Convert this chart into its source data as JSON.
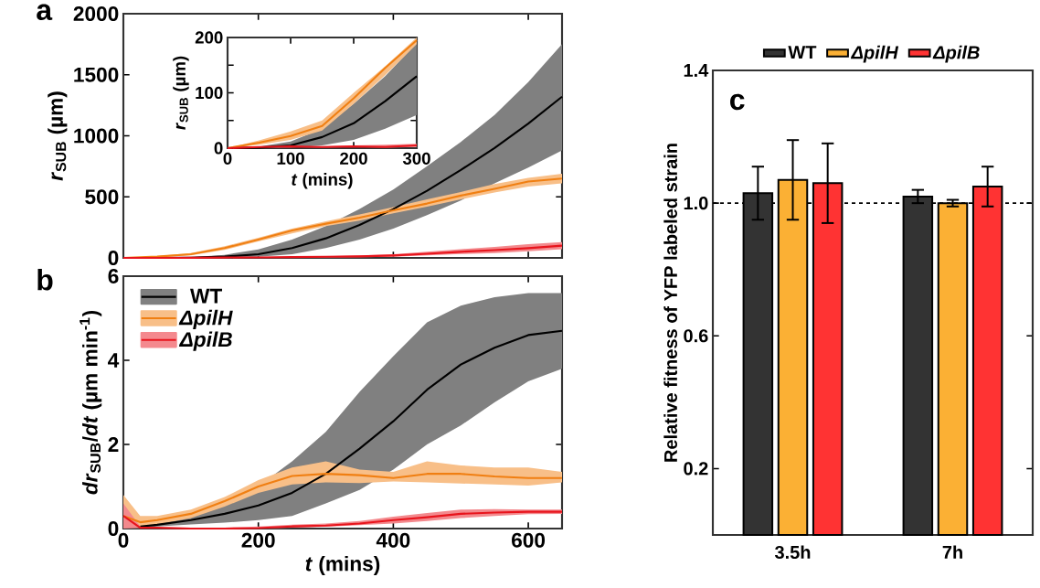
{
  "chart_data": [
    {
      "type": "line",
      "ylabel": "*r*$_{SUB}$ (µm)",
      "annotations": [
        "a"
      ],
      "xlim": [
        0,
        650
      ],
      "ylim": [
        0,
        2000
      ],
      "xticks": [
        0,
        200,
        400,
        600
      ],
      "yticks": [
        0,
        500,
        1000,
        1500,
        2000
      ],
      "tick_labels": "y",
      "x": [
        0,
        50,
        100,
        150,
        200,
        250,
        300,
        350,
        400,
        450,
        500,
        550,
        600,
        650
      ],
      "series": [
        {
          "color": "#000000",
          "values": [
            0,
            0,
            2,
            10,
            30,
            80,
            160,
            270,
            400,
            550,
            720,
            900,
            1100,
            1320
          ],
          "lower": [
            0,
            0,
            0.5,
            2,
            10,
            30,
            80,
            150,
            240,
            350,
            470,
            610,
            740,
            880
          ],
          "upper": [
            0,
            1,
            5,
            25,
            70,
            150,
            260,
            400,
            560,
            750,
            950,
            1170,
            1440,
            1750
          ]
        },
        {
          "color": "#f07f12",
          "values": [
            0,
            10,
            30,
            80,
            150,
            225,
            280,
            330,
            390,
            445,
            510,
            565,
            625,
            650
          ],
          "lower": [
            0,
            5,
            20,
            65,
            135,
            200,
            260,
            305,
            365,
            420,
            480,
            535,
            585,
            610
          ],
          "upper": [
            0,
            15,
            40,
            95,
            165,
            240,
            300,
            355,
            415,
            480,
            540,
            605,
            655,
            690
          ]
        },
        {
          "color": "#e8141c",
          "values": [
            0,
            0,
            1,
            3,
            4,
            7,
            9,
            12,
            20,
            34,
            50,
            64,
            80,
            100
          ],
          "lower": [
            0,
            0,
            1,
            0,
            1,
            3,
            4,
            6,
            10,
            20,
            31,
            40,
            55,
            72
          ],
          "upper": [
            0,
            1,
            3,
            4,
            6,
            9,
            13,
            20,
            30,
            50,
            72,
            90,
            112,
            130
          ]
        }
      ]
    },
    {
      "type": "line",
      "xlabel": "*t* (mins)",
      "ylabel": "*r*$_{SUB}$ (µm)",
      "xlim": [
        0,
        300
      ],
      "ylim": [
        0,
        200
      ],
      "xticks": [
        0,
        100,
        200,
        300
      ],
      "yticks": [
        0,
        {
          "value": 50,
          "label": null
        },
        100,
        {
          "value": 150,
          "label": null
        },
        200
      ],
      "x": [
        0,
        50,
        100,
        150,
        200,
        250,
        300
      ],
      "series": [
        {
          "color": "#000000",
          "values": [
            0,
            1,
            5,
            20,
            45,
            85,
            130
          ],
          "lower": [
            0,
            0,
            1,
            5,
            15,
            35,
            60
          ],
          "upper": [
            0,
            3,
            12,
            35,
            80,
            130,
            190
          ]
        },
        {
          "color": "#f07f12",
          "values": [
            0,
            10,
            22,
            40,
            90,
            145,
            195
          ],
          "lower": [
            0,
            6,
            15,
            32,
            80,
            132,
            188
          ],
          "upper": [
            0,
            14,
            30,
            50,
            100,
            148,
            200
          ]
        },
        {
          "color": "#e8141c",
          "values": [
            0,
            2,
            3,
            2,
            3,
            2,
            5
          ],
          "lower": [
            0,
            1,
            2,
            1,
            2,
            1,
            2
          ],
          "upper": [
            0,
            3,
            4,
            3,
            5,
            6,
            8
          ]
        }
      ]
    },
    {
      "type": "line",
      "xlabel": "*t* (mins)",
      "ylabel": "*dr*$_{SUB}$/*dt* (µm min$^{-1}$)",
      "annotations": [
        "b"
      ],
      "xlim": [
        0,
        650
      ],
      "ylim": [
        0,
        6
      ],
      "xticks": [
        0,
        200,
        400,
        600
      ],
      "yticks": [
        0,
        2,
        4,
        6
      ],
      "legend": "top left",
      "x": [
        0,
        25,
        50,
        100,
        150,
        200,
        250,
        300,
        350,
        400,
        450,
        500,
        550,
        600,
        650
      ],
      "series": [
        {
          "name": "WT",
          "color": "#000000",
          "values": [
            null,
            0.05,
            0.09,
            0.2,
            0.35,
            0.55,
            0.85,
            1.3,
            1.9,
            2.55,
            3.3,
            3.9,
            4.3,
            4.6,
            4.7
          ],
          "lower": [
            null,
            0.02,
            0.05,
            0.1,
            0.14,
            0.2,
            0.3,
            0.6,
            0.92,
            1.4,
            2.0,
            2.45,
            3.0,
            3.5,
            3.8
          ],
          "upper": [
            null,
            0.1,
            0.15,
            0.35,
            0.6,
            1.0,
            1.6,
            2.3,
            3.25,
            4.1,
            4.9,
            5.3,
            5.5,
            5.6,
            5.6
          ]
        },
        {
          "name": "*ΔpilH*",
          "color": "#f07f12",
          "values": [
            0.3,
            0.15,
            0.2,
            0.35,
            0.65,
            1.0,
            1.25,
            1.3,
            1.27,
            1.2,
            1.3,
            1.3,
            1.24,
            1.2,
            1.2
          ],
          "lower": [
            0.1,
            0.05,
            0.1,
            0.25,
            0.52,
            0.85,
            1.05,
            1.1,
            1.08,
            1.12,
            1.1,
            1.07,
            1.05,
            1.02,
            1.1
          ],
          "upper": [
            0.8,
            0.3,
            0.3,
            0.45,
            0.75,
            1.15,
            1.45,
            1.6,
            1.4,
            1.35,
            1.6,
            1.5,
            1.45,
            1.45,
            1.35
          ]
        },
        {
          "name": "*ΔpilB*",
          "color": "#e8141c",
          "values": [
            0.3,
            0.02,
            0.02,
            0,
            0,
            0.01,
            0.05,
            0.07,
            0.12,
            0.2,
            0.27,
            0.35,
            0.38,
            0.4,
            0.4
          ],
          "lower": [
            0,
            0.01,
            0.03,
            0,
            0.01,
            0,
            0.02,
            0.045,
            0.08,
            0.12,
            0.18,
            0.25,
            0.3,
            0.34,
            0.35
          ],
          "upper": [
            0.6,
            0.05,
            0.035,
            0.02,
            0.02,
            0.05,
            0.09,
            0.12,
            0.18,
            0.28,
            0.37,
            0.45,
            0.46,
            0.45,
            0.45
          ]
        }
      ]
    },
    {
      "type": "bar",
      "ylabel": "Relative fitness of YFP labeled strain",
      "annotations": [
        "c"
      ],
      "categories": [
        "3.5h",
        "7h"
      ],
      "ylim": [
        0,
        1.4
      ],
      "yticks": [
        0.2,
        0.6,
        {
          "value": 1,
          "label": "1.0"
        },
        1.4
      ],
      "legend": "top",
      "ref_lines": [
        {
          "axis": "y",
          "value": 1,
          "line_style": "dashed",
          "color": "#000000"
        }
      ],
      "series": [
        {
          "name": "WT",
          "color": "#333333",
          "values": [
            1.03,
            1.02
          ],
          "errors": [
            0.08,
            0.02
          ]
        },
        {
          "name": "*ΔpilH*",
          "color": "#fbb034",
          "values": [
            1.07,
            1.0
          ],
          "errors": [
            0.12,
            0.01
          ]
        },
        {
          "name": "*ΔpilB*",
          "color": "#ff3333",
          "values": [
            1.06,
            1.05
          ],
          "errors": [
            0.12,
            0.06
          ]
        }
      ]
    }
  ]
}
